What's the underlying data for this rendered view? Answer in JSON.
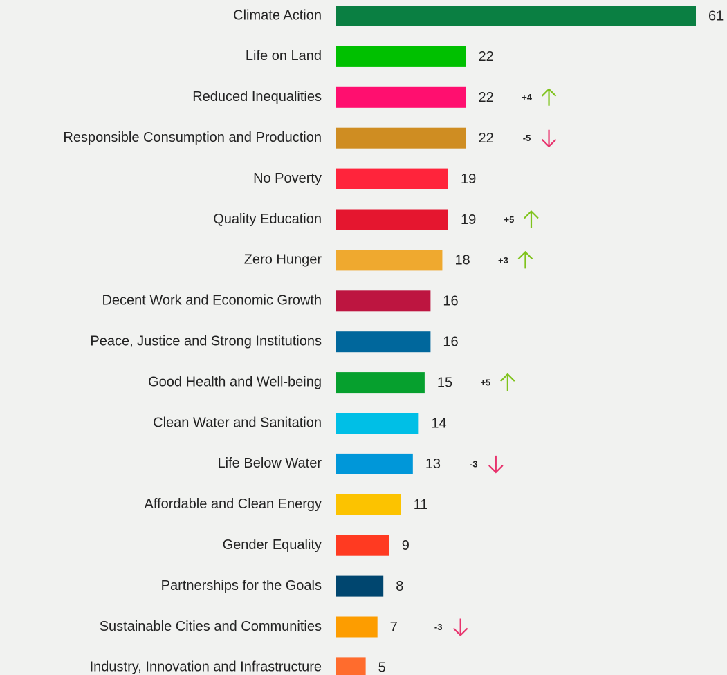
{
  "chart_data": {
    "type": "barh",
    "categories": [
      "Climate Action",
      "Life on Land",
      "Reduced Inequalities",
      "Responsible Consumption and Production",
      "No Poverty",
      "Quality Education",
      "Zero Hunger",
      "Decent Work and Economic Growth",
      "Peace, Justice and Strong Institutions",
      "Good Health and Well-being",
      "Clean Water and Sanitation",
      "Life Below Water",
      "Affordable and Clean Energy",
      "Gender Equality",
      "Partnerships for the Goals",
      "Sustainable Cities and Communities",
      "Industry, Innovation and Infrastructure"
    ],
    "values": [
      61,
      22,
      22,
      22,
      19,
      19,
      18,
      16,
      16,
      15,
      14,
      13,
      11,
      9,
      8,
      7,
      5
    ],
    "colors": [
      "#0a7f42",
      "#00c000",
      "#ff0f6f",
      "#cf8d22",
      "#ff243b",
      "#e5162f",
      "#efa92f",
      "#bd1540",
      "#00679c",
      "#06a02e",
      "#00bfe6",
      "#0097d9",
      "#fcc300",
      "#ff3a21",
      "#00466f",
      "#fd9d00",
      "#ff6c2d"
    ],
    "changes": [
      null,
      null,
      4,
      -5,
      null,
      5,
      3,
      null,
      null,
      5,
      null,
      -3,
      null,
      null,
      null,
      -3,
      null
    ],
    "change_labels": [
      null,
      null,
      "+4",
      "-5",
      null,
      "+5",
      "+3",
      null,
      null,
      "+5",
      null,
      "-3",
      null,
      null,
      null,
      "-3",
      null
    ],
    "up_color": "#7fc31c",
    "down_color": "#e8336d",
    "xlim": [
      0,
      61
    ]
  }
}
